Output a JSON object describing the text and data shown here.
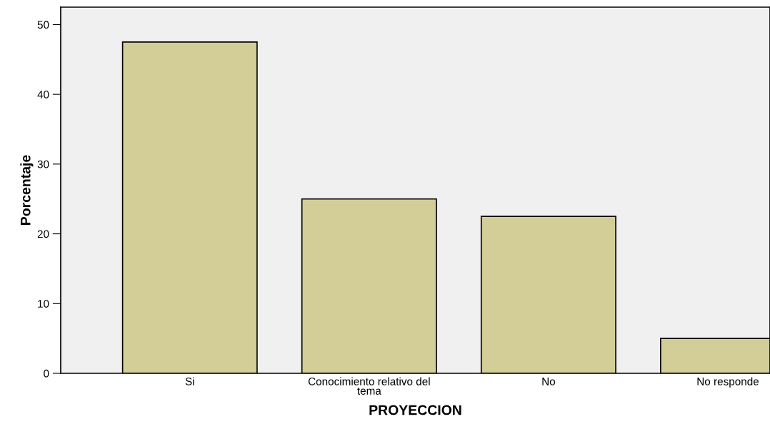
{
  "chart_data": {
    "type": "bar",
    "xlabel": "PROYECCION",
    "ylabel": "Porcentaje",
    "categories": [
      "Si",
      "Conocimiento relativo del\ntema",
      "No",
      "No responde"
    ],
    "values": [
      47.5,
      25,
      22.5,
      5
    ],
    "color": "#d3ce97",
    "ylim": [
      0,
      52.5
    ],
    "yticks": [
      0,
      10,
      20,
      30,
      40,
      50
    ],
    "grid": false,
    "legend": false
  }
}
